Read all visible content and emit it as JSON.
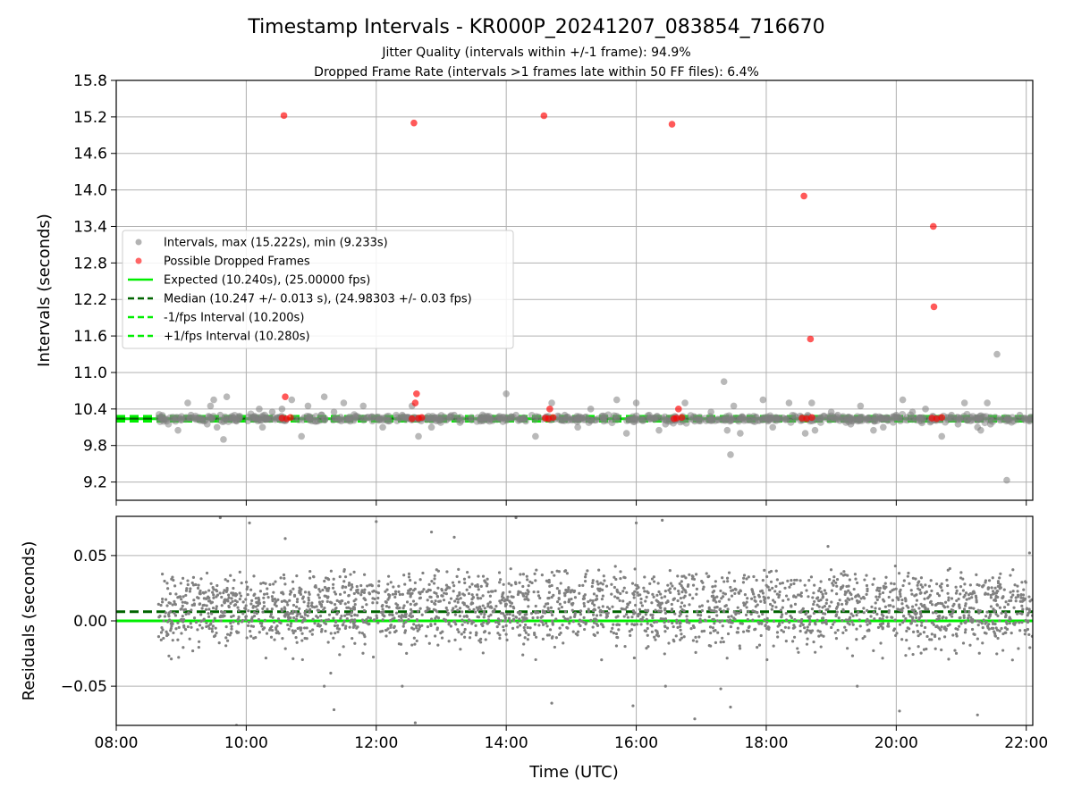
{
  "title": "Timestamp Intervals - KR000P_20241207_083854_716670",
  "subtitle_lines": [
    "Jitter Quality (intervals within +/-1 frame): 94.9%",
    "Dropped Frame Rate (intervals >1 frames late within 50 FF files): 6.4%"
  ],
  "colors": {
    "intervals": "#808080",
    "dropped": "#ff0000",
    "expected": "#00ee00",
    "median": "#006400",
    "fps_band": "#00ee00",
    "grid": "#b0b0b0"
  },
  "chart_data": [
    {
      "type": "scatter",
      "name": "intervals-panel",
      "ylabel": "Intervals (seconds)",
      "xlabel": "",
      "xlim": [
        8.0,
        22.1
      ],
      "ylim": [
        8.9,
        15.8
      ],
      "yticks": [
        9.2,
        9.8,
        10.4,
        11.0,
        11.6,
        12.2,
        12.8,
        13.4,
        14.0,
        14.6,
        15.2,
        15.8
      ],
      "ytick_labels": [
        "9.2",
        "9.8",
        "10.4",
        "11.0",
        "11.6",
        "12.2",
        "12.8",
        "13.4",
        "14.0",
        "14.6",
        "15.2",
        "15.8"
      ],
      "xticks": [
        8,
        10,
        12,
        14,
        16,
        18,
        20,
        22
      ],
      "grid": true,
      "legend": {
        "placement": "center-left",
        "entries": [
          {
            "label": "Intervals, max (15.222s), min (9.233s)",
            "kind": "marker",
            "color": "#808080"
          },
          {
            "label": "Possible Dropped Frames",
            "kind": "marker",
            "color": "#ff0000"
          },
          {
            "label": "Expected (10.240s), (25.00000 fps)",
            "kind": "solid",
            "color": "#00ee00"
          },
          {
            "label": "Median (10.247 +/- 0.013 s), (24.98303 +/- 0.03 fps)",
            "kind": "dashed",
            "color": "#006400"
          },
          {
            "label": "-1/fps Interval (10.200s)",
            "kind": "dashed",
            "color": "#00ee00"
          },
          {
            "label": "+1/fps Interval (10.280s)",
            "kind": "dashed",
            "color": "#00ee00"
          }
        ]
      },
      "lines": [
        {
          "name": "Expected",
          "y": 10.24,
          "style": "solid",
          "color": "#00ee00"
        },
        {
          "name": "Median",
          "y": 10.247,
          "style": "dashed",
          "color": "#006400"
        },
        {
          "name": "-1/fps Interval",
          "y": 10.2,
          "style": "dashed",
          "color": "#00ee00"
        },
        {
          "name": "+1/fps Interval",
          "y": 10.28,
          "style": "dashed",
          "color": "#00ee00"
        }
      ],
      "series": [
        {
          "name": "Intervals",
          "color": "#808080",
          "x": [
            8.65,
            8.95,
            9.1,
            9.15,
            9.35,
            9.4,
            9.45,
            9.5,
            9.55,
            9.6,
            9.65,
            9.7,
            9.85,
            10.2,
            10.25,
            10.4,
            10.55,
            10.7,
            10.85,
            10.95,
            11.1,
            11.2,
            11.35,
            11.5,
            11.6,
            11.8,
            12.1,
            12.4,
            12.55,
            12.65,
            12.85,
            13.2,
            13.6,
            14.0,
            14.15,
            14.3,
            14.45,
            14.7,
            14.9,
            15.1,
            15.3,
            15.5,
            15.7,
            15.85,
            16.0,
            16.2,
            16.35,
            16.45,
            16.75,
            16.9,
            17.15,
            17.35,
            17.4,
            17.45,
            17.5,
            17.6,
            17.8,
            17.95,
            18.1,
            18.35,
            18.6,
            18.7,
            18.75,
            19.0,
            19.1,
            19.3,
            19.45,
            19.65,
            19.8,
            20.0,
            20.1,
            20.25,
            20.45,
            20.7,
            20.85,
            20.95,
            21.05,
            21.25,
            21.3,
            21.4,
            21.45,
            21.55,
            21.7,
            21.9,
            22.05
          ],
          "y": [
            10.25,
            10.05,
            10.5,
            10.3,
            10.2,
            10.15,
            10.45,
            10.55,
            10.1,
            10.3,
            9.9,
            10.6,
            10.2,
            10.4,
            10.1,
            10.35,
            10.4,
            10.55,
            9.95,
            10.45,
            10.2,
            10.6,
            10.35,
            10.5,
            10.2,
            10.45,
            10.1,
            10.3,
            10.45,
            9.95,
            10.1,
            10.3,
            10.2,
            10.65,
            10.3,
            10.2,
            9.95,
            10.5,
            10.3,
            10.1,
            10.4,
            10.2,
            10.55,
            10.0,
            10.5,
            10.3,
            10.05,
            10.15,
            10.5,
            10.2,
            10.35,
            10.85,
            10.05,
            9.65,
            10.45,
            10.0,
            10.2,
            10.55,
            10.1,
            10.5,
            10.0,
            10.5,
            10.05,
            10.35,
            10.3,
            10.15,
            10.45,
            10.05,
            10.1,
            10.3,
            10.55,
            10.35,
            10.4,
            9.95,
            10.3,
            10.15,
            10.5,
            10.1,
            10.05,
            10.5,
            10.15,
            11.3,
            9.23,
            10.3,
            10.2
          ]
        },
        {
          "name": "Possible Dropped Frames",
          "color": "#ff0000",
          "x": [
            10.58,
            10.6,
            12.58,
            12.6,
            12.62,
            14.58,
            14.67,
            16.55,
            16.65,
            18.58,
            18.68,
            20.57,
            20.58,
            10.55,
            10.62,
            10.68,
            12.55,
            12.65,
            12.7,
            14.6,
            14.65,
            14.72,
            16.58,
            16.62,
            16.7,
            18.55,
            18.62,
            18.7,
            20.55,
            20.62,
            20.7
          ],
          "y": [
            15.222,
            10.6,
            15.1,
            10.5,
            10.65,
            15.22,
            10.4,
            15.08,
            10.4,
            13.9,
            11.55,
            13.4,
            12.08,
            10.25,
            10.24,
            10.26,
            10.24,
            10.25,
            10.26,
            10.25,
            10.24,
            10.26,
            10.24,
            10.25,
            10.26,
            10.25,
            10.24,
            10.26,
            10.25,
            10.24,
            10.26
          ]
        }
      ]
    },
    {
      "type": "scatter",
      "name": "residuals-panel",
      "ylabel": "Residuals (seconds)",
      "xlabel": "Time (UTC)",
      "xlim": [
        8.0,
        22.1
      ],
      "ylim": [
        -0.08,
        0.08
      ],
      "yticks": [
        -0.05,
        0.0,
        0.05
      ],
      "ytick_labels": [
        "−0.05",
        "0.00",
        "0.05"
      ],
      "xticks": [
        8,
        10,
        12,
        14,
        16,
        18,
        20,
        22
      ],
      "xtick_labels": [
        "08:00",
        "10:00",
        "12:00",
        "14:00",
        "16:00",
        "18:00",
        "20:00",
        "22:00"
      ],
      "grid": true,
      "lines": [
        {
          "name": "Expected",
          "y": 0.0,
          "style": "solid",
          "color": "#00ee00"
        },
        {
          "name": "Median",
          "y": 0.007,
          "style": "dashed",
          "color": "#006400"
        }
      ],
      "series": [
        {
          "name": "Residuals",
          "color": "#808080",
          "description": "Dense scatter of ~2000 points from 08:40 to 22:05 UTC, clustered in two bands near +0.02 s and 0.00 s, spread roughly -0.03 to +0.04 s with sparse outliers",
          "x_range": [
            8.65,
            22.1
          ],
          "bands": [
            0.02,
            0.0
          ],
          "spread": [
            -0.03,
            0.04
          ],
          "outliers_x": [
            9.6,
            9.85,
            10.05,
            10.6,
            11.2,
            11.3,
            11.35,
            12.0,
            12.4,
            12.6,
            12.85,
            13.2,
            14.15,
            14.7,
            15.95,
            16.0,
            16.4,
            16.45,
            16.9,
            17.3,
            17.45,
            18.95,
            19.4,
            20.05,
            21.25,
            22.05
          ],
          "outliers_y": [
            0.079,
            -0.08,
            0.075,
            0.063,
            -0.05,
            -0.04,
            -0.068,
            0.076,
            -0.05,
            -0.078,
            0.068,
            0.064,
            0.079,
            -0.063,
            -0.065,
            0.075,
            0.077,
            -0.05,
            -0.075,
            -0.052,
            -0.066,
            0.057,
            -0.05,
            -0.069,
            -0.072,
            0.052
          ]
        }
      ]
    }
  ]
}
